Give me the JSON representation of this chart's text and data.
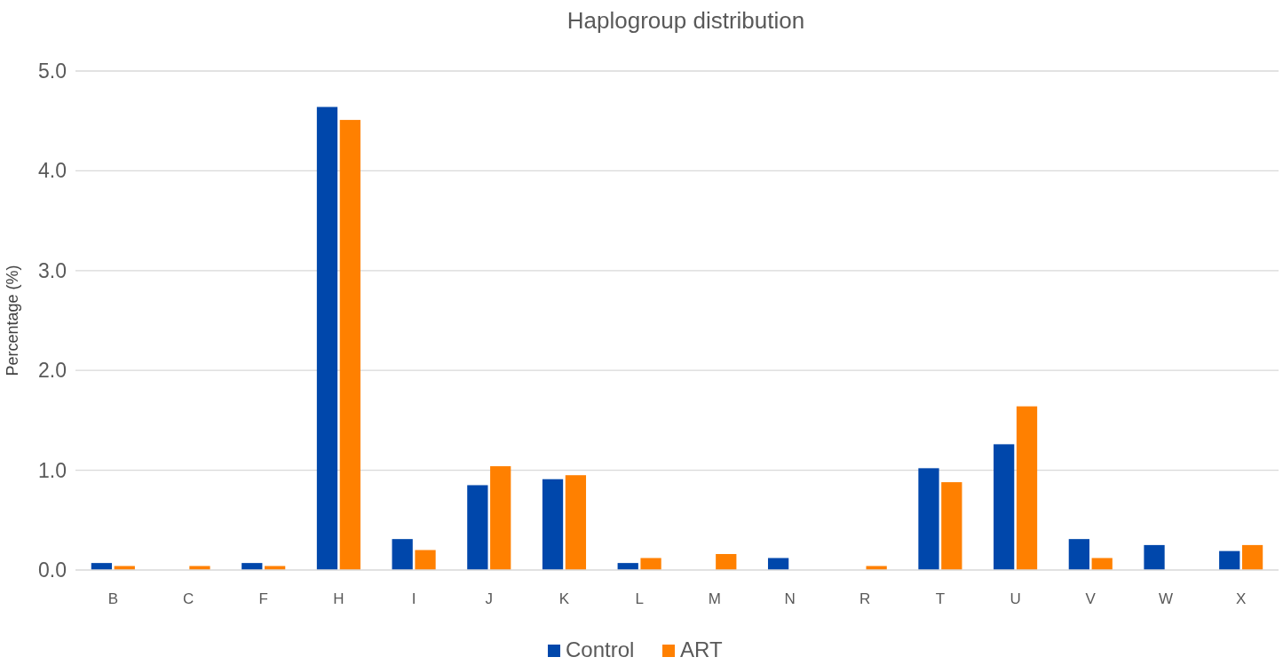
{
  "chart_data": {
    "type": "bar",
    "title": "Haplogroup distribution",
    "ylabel": "Percentage (%)",
    "categories": [
      "B",
      "C",
      "F",
      "H",
      "I",
      "J",
      "K",
      "L",
      "M",
      "N",
      "R",
      "T",
      "U",
      "V",
      "W",
      "X"
    ],
    "series": [
      {
        "name": "Control",
        "color": "#0047ab",
        "values": [
          0.07,
          0,
          0.07,
          4.64,
          0.31,
          0.85,
          0.91,
          0.07,
          0,
          0.12,
          0,
          1.02,
          1.26,
          0.31,
          0.25,
          0.19
        ]
      },
      {
        "name": "ART",
        "color": "#ff8000",
        "values": [
          0.04,
          0.04,
          0.04,
          4.51,
          0.2,
          1.04,
          0.95,
          0.12,
          0.16,
          0,
          0.04,
          0.88,
          1.64,
          0.12,
          0,
          0.25
        ]
      }
    ],
    "ylim": [
      0,
      5
    ],
    "yticks": [
      {
        "value": 0,
        "label": "0.0"
      },
      {
        "value": 1,
        "label": "1.0"
      },
      {
        "value": 2,
        "label": "2.0"
      },
      {
        "value": 3,
        "label": "3.0"
      },
      {
        "value": 4,
        "label": "4.0"
      },
      {
        "value": 5,
        "label": "5.0"
      }
    ],
    "grid": "y",
    "legend": "bottom"
  }
}
